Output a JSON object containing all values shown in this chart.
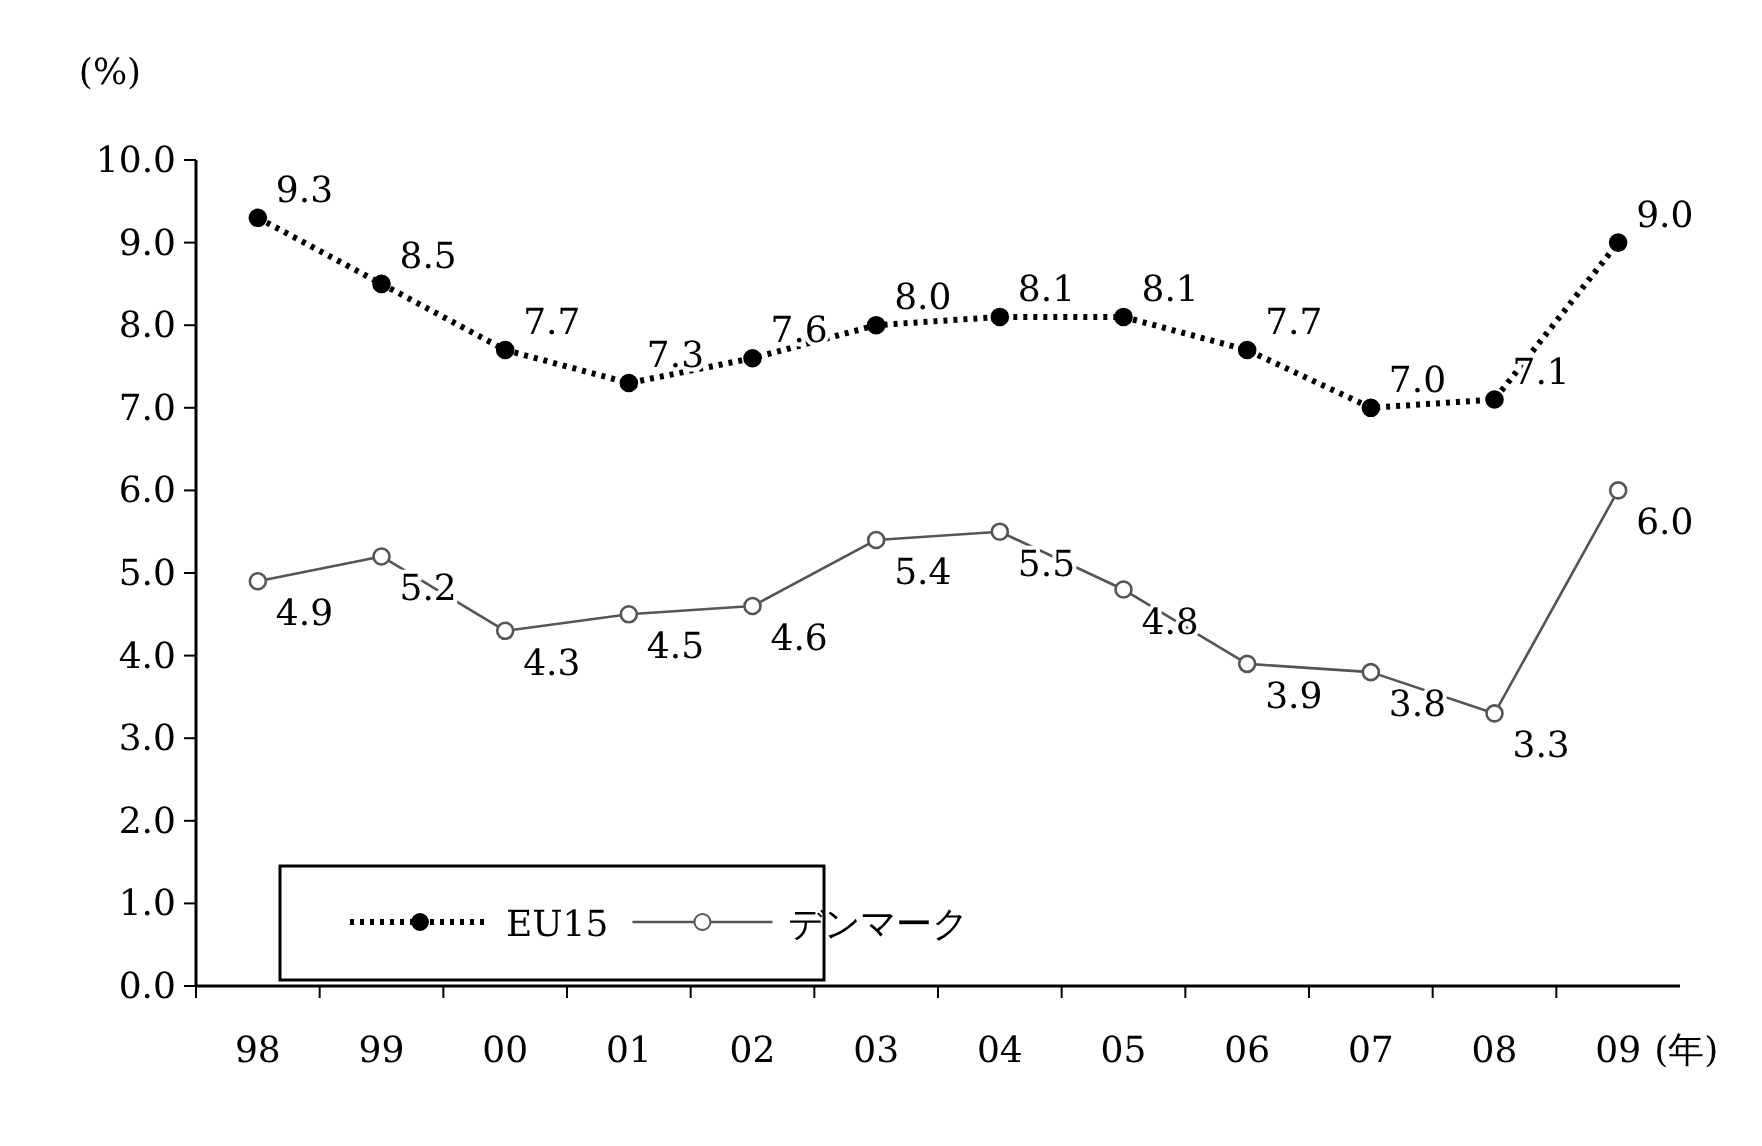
{
  "chart_data": {
    "type": "line",
    "ylabel": "(%)",
    "xlabel": "(年)",
    "categories": [
      "98",
      "99",
      "00",
      "01",
      "02",
      "03",
      "04",
      "05",
      "06",
      "07",
      "08",
      "09"
    ],
    "series": [
      {
        "name": "EU15",
        "color": "#000000",
        "line_style": "dotted",
        "marker": "circle",
        "values": [
          9.3,
          8.5,
          7.7,
          7.3,
          7.6,
          8.0,
          8.1,
          8.1,
          7.7,
          7.0,
          7.1,
          9.0
        ],
        "value_labels": [
          "9.3",
          "8.5",
          "7.7",
          "7.3",
          "7.6",
          "8.0",
          "8.1",
          "8.1",
          "7.7",
          "7.0",
          "7.1",
          "9.0"
        ]
      },
      {
        "name": "デンマーク",
        "color": "#555555",
        "line_style": "solid",
        "marker": "circle",
        "values": [
          4.9,
          5.2,
          4.3,
          4.5,
          4.6,
          5.4,
          5.5,
          4.8,
          3.9,
          3.8,
          3.3,
          6.0
        ],
        "value_labels": [
          "4.9",
          "5.2",
          "4.3",
          "4.5",
          "4.6",
          "5.4",
          "5.5",
          "4.8",
          "3.9",
          "3.8",
          "3.3",
          "6.0"
        ]
      }
    ],
    "ylim": [
      0,
      10
    ],
    "yticks": [
      {
        "value": 0,
        "label": "0.0"
      },
      {
        "value": 1,
        "label": "1.0"
      },
      {
        "value": 2,
        "label": "2.0"
      },
      {
        "value": 3,
        "label": "3.0"
      },
      {
        "value": 4,
        "label": "4.0"
      },
      {
        "value": 5,
        "label": "5.0"
      },
      {
        "value": 6,
        "label": "6.0"
      },
      {
        "value": 7,
        "label": "7.0"
      },
      {
        "value": 8,
        "label": "8.0"
      },
      {
        "value": 9,
        "label": "9.0"
      },
      {
        "value": 10,
        "label": "10.0"
      }
    ],
    "grid": false,
    "legend": "bottom left"
  }
}
